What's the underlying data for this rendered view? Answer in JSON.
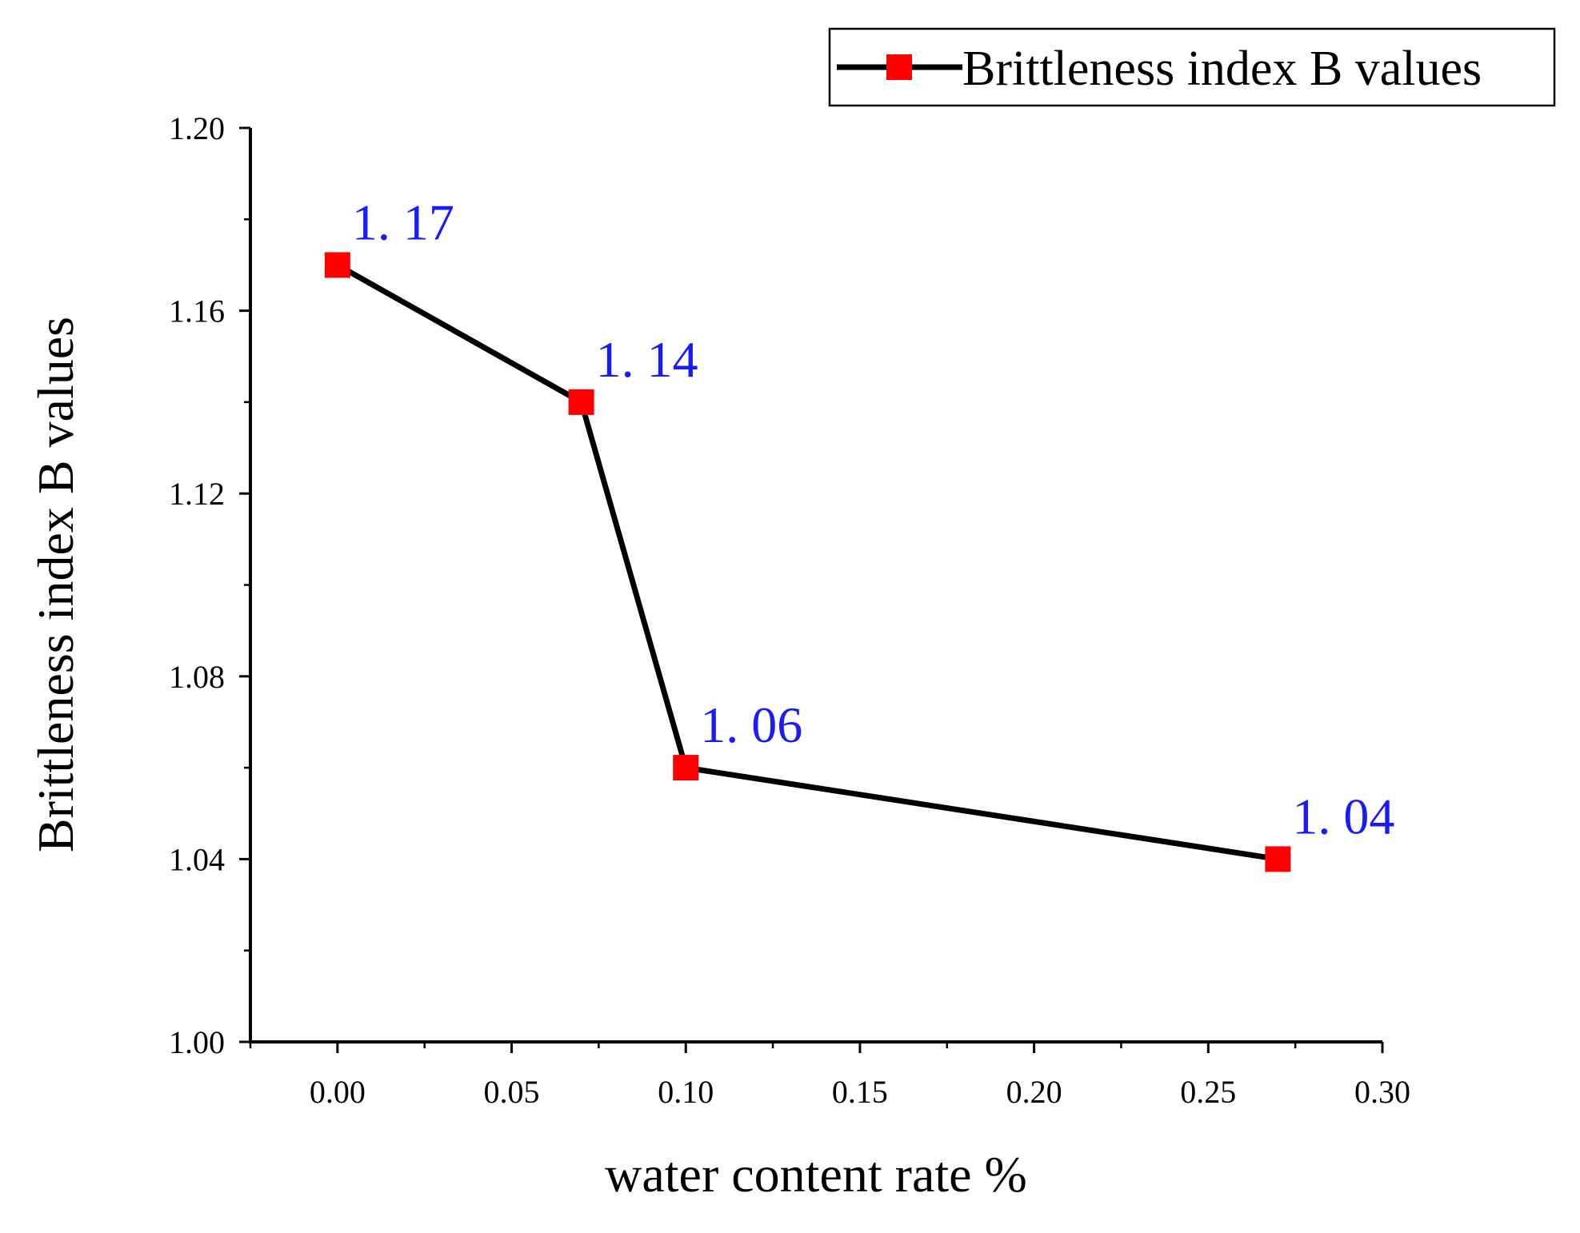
{
  "chart_data": {
    "type": "line",
    "title": "",
    "xlabel": "water content rate %",
    "ylabel": "Brittleness index B values",
    "xlim": [
      -0.025,
      0.3
    ],
    "ylim": [
      1.0,
      1.2
    ],
    "x_ticks": [
      0.0,
      0.05,
      0.1,
      0.15,
      0.2,
      0.25,
      0.3
    ],
    "x_tick_labels": [
      "0.00",
      "0.05",
      "0.10",
      "0.15",
      "0.20",
      "0.25",
      "0.30"
    ],
    "y_ticks": [
      1.0,
      1.04,
      1.08,
      1.12,
      1.16,
      1.2
    ],
    "y_tick_labels": [
      "1.00",
      "1.04",
      "1.08",
      "1.12",
      "1.16",
      "1.20"
    ],
    "grid": false,
    "legend_position": "top-right",
    "series": [
      {
        "name": "Brittleness index B values",
        "x": [
          0.0,
          0.07,
          0.1,
          0.27
        ],
        "y": [
          1.17,
          1.14,
          1.06,
          1.04
        ],
        "data_labels": [
          "1. 17",
          "1. 14",
          "1. 06",
          "1. 04"
        ],
        "line_color": "#000000",
        "marker": "square",
        "marker_color": "#ff0000",
        "label_color": "#1a1aff"
      }
    ]
  }
}
